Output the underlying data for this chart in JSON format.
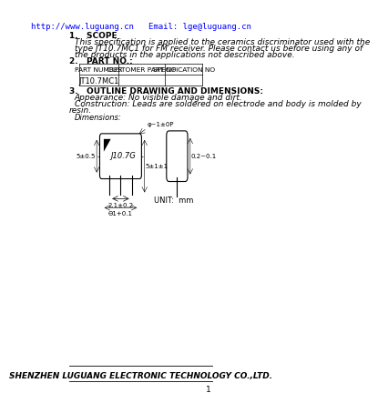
{
  "title_url": "http://www.luguang.cn",
  "title_email": "   Email: lge@luguang.cn",
  "url_color": "#0000FF",
  "section1_header": "1.   SCOPE",
  "section1_text1": "This specification is applied to the ceramics discriminator used with the",
  "section1_text2": "type JT10.7MC1 for FM receiver. Please contact us before using any of",
  "section1_text3": "the products in the applications not described above.",
  "section2_header": "2.   PART NO.:",
  "table_headers": [
    "PART NUMBER",
    "CUSTOMER PART NO",
    "SPECIFICATION NO"
  ],
  "table_row": [
    "JT10.7MC1",
    "",
    ""
  ],
  "section3_header": "3.   OUTLINE DRAWING AND DIMENSIONS:",
  "section3_text1": "Appearance: No visible damage and dirt.",
  "section3_text2": "Construction: Leads are soldered on electrode and body is molded by",
  "section3_text3": "resin.",
  "dimensions_label": "Dimensions:",
  "unit_label": "UNIT:  mm",
  "footer": "SHENZHEN LUGUANG ELECTRONIC TECHNOLOGY CO.,LTD.",
  "page_num": "1",
  "bg_color": "#FFFFFF",
  "text_color": "#000000",
  "font_size": 6.5,
  "header_font_size": 7.0
}
